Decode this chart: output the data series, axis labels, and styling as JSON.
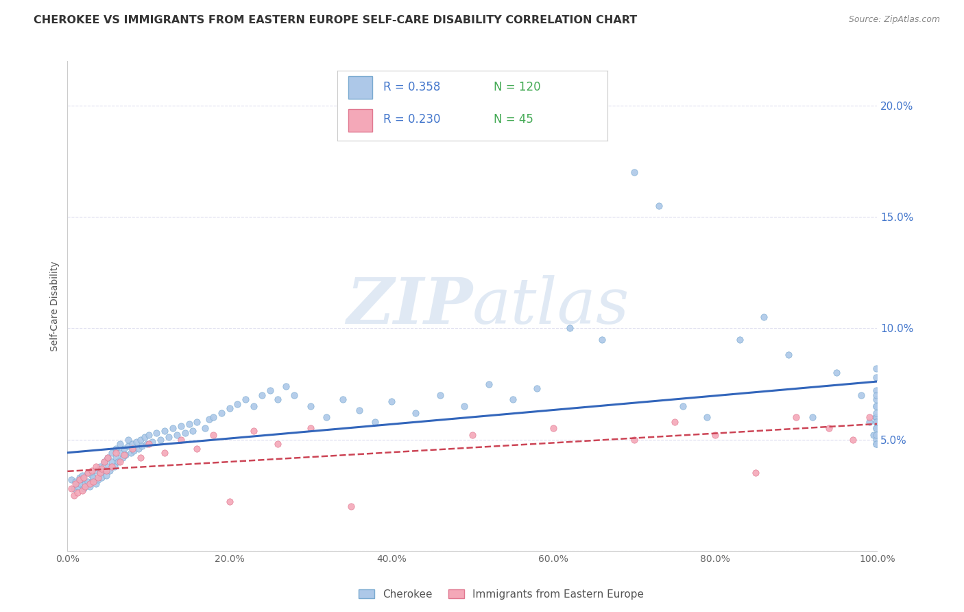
{
  "title": "CHEROKEE VS IMMIGRANTS FROM EASTERN EUROPE SELF-CARE DISABILITY CORRELATION CHART",
  "source": "Source: ZipAtlas.com",
  "ylabel": "Self-Care Disability",
  "xlim": [
    0,
    1.0
  ],
  "ylim": [
    0,
    0.22
  ],
  "xtick_vals": [
    0.0,
    0.2,
    0.4,
    0.6,
    0.8,
    1.0
  ],
  "xtick_labels": [
    "0.0%",
    "20.0%",
    "40.0%",
    "60.0%",
    "80.0%",
    "100.0%"
  ],
  "ytick_vals": [
    0.0,
    0.05,
    0.1,
    0.15,
    0.2
  ],
  "ytick_labels": [
    "",
    "5.0%",
    "10.0%",
    "15.0%",
    "20.0%"
  ],
  "cherokee_color": "#adc8e8",
  "cherokee_edge_color": "#7aaad0",
  "eastern_europe_color": "#f4a8b8",
  "eastern_europe_edge_color": "#e07890",
  "cherokee_R": 0.358,
  "cherokee_N": 120,
  "eastern_europe_R": 0.23,
  "eastern_europe_N": 45,
  "cherokee_trend_color": "#3366bb",
  "eastern_europe_trend_color": "#cc4455",
  "legend_cherokee": "Cherokee",
  "legend_eastern": "Immigrants from Eastern Europe",
  "watermark": "ZIPatlas",
  "background_color": "#ffffff",
  "grid_color": "#ddddee",
  "title_color": "#333333",
  "ytick_color": "#4477cc",
  "xtick_color": "#666666",
  "r_color": "#4477cc",
  "n_color": "#44aa55",
  "cherokee_x": [
    0.005,
    0.008,
    0.01,
    0.012,
    0.015,
    0.015,
    0.018,
    0.02,
    0.02,
    0.022,
    0.025,
    0.025,
    0.028,
    0.03,
    0.03,
    0.032,
    0.035,
    0.035,
    0.038,
    0.04,
    0.04,
    0.042,
    0.045,
    0.045,
    0.048,
    0.05,
    0.05,
    0.052,
    0.055,
    0.055,
    0.058,
    0.06,
    0.06,
    0.062,
    0.065,
    0.065,
    0.068,
    0.07,
    0.072,
    0.075,
    0.075,
    0.078,
    0.08,
    0.082,
    0.085,
    0.088,
    0.09,
    0.092,
    0.095,
    0.098,
    0.1,
    0.105,
    0.11,
    0.115,
    0.12,
    0.125,
    0.13,
    0.135,
    0.14,
    0.145,
    0.15,
    0.155,
    0.16,
    0.17,
    0.175,
    0.18,
    0.19,
    0.2,
    0.21,
    0.22,
    0.23,
    0.24,
    0.25,
    0.26,
    0.27,
    0.28,
    0.3,
    0.32,
    0.34,
    0.36,
    0.38,
    0.4,
    0.43,
    0.46,
    0.49,
    0.52,
    0.55,
    0.58,
    0.62,
    0.66,
    0.7,
    0.73,
    0.76,
    0.79,
    0.83,
    0.86,
    0.89,
    0.92,
    0.95,
    0.98,
    0.99,
    0.995,
    0.998,
    0.999,
    0.999,
    0.999,
    0.999,
    0.999,
    0.999,
    0.999,
    0.999,
    0.999,
    0.999,
    0.999,
    0.999,
    0.999,
    0.999,
    0.999,
    0.999,
    0.999
  ],
  "cherokee_y": [
    0.032,
    0.028,
    0.031,
    0.029,
    0.033,
    0.03,
    0.034,
    0.028,
    0.032,
    0.03,
    0.035,
    0.031,
    0.029,
    0.034,
    0.031,
    0.033,
    0.036,
    0.03,
    0.032,
    0.035,
    0.038,
    0.033,
    0.036,
    0.04,
    0.034,
    0.038,
    0.042,
    0.036,
    0.04,
    0.044,
    0.038,
    0.042,
    0.046,
    0.04,
    0.044,
    0.048,
    0.042,
    0.046,
    0.043,
    0.047,
    0.05,
    0.044,
    0.048,
    0.045,
    0.049,
    0.046,
    0.05,
    0.047,
    0.051,
    0.048,
    0.052,
    0.049,
    0.053,
    0.05,
    0.054,
    0.051,
    0.055,
    0.052,
    0.056,
    0.053,
    0.057,
    0.054,
    0.058,
    0.055,
    0.059,
    0.06,
    0.062,
    0.064,
    0.066,
    0.068,
    0.065,
    0.07,
    0.072,
    0.068,
    0.074,
    0.07,
    0.065,
    0.06,
    0.068,
    0.063,
    0.058,
    0.067,
    0.062,
    0.07,
    0.065,
    0.075,
    0.068,
    0.073,
    0.1,
    0.095,
    0.17,
    0.155,
    0.065,
    0.06,
    0.095,
    0.105,
    0.088,
    0.06,
    0.08,
    0.07,
    0.058,
    0.052,
    0.06,
    0.055,
    0.048,
    0.065,
    0.05,
    0.06,
    0.058,
    0.048,
    0.052,
    0.068,
    0.072,
    0.055,
    0.078,
    0.062,
    0.082,
    0.058,
    0.065,
    0.07
  ],
  "eastern_x": [
    0.005,
    0.008,
    0.01,
    0.012,
    0.015,
    0.018,
    0.02,
    0.022,
    0.025,
    0.028,
    0.03,
    0.032,
    0.035,
    0.038,
    0.04,
    0.042,
    0.045,
    0.048,
    0.05,
    0.055,
    0.06,
    0.065,
    0.07,
    0.08,
    0.09,
    0.1,
    0.12,
    0.14,
    0.16,
    0.18,
    0.2,
    0.23,
    0.26,
    0.3,
    0.35,
    0.5,
    0.6,
    0.7,
    0.75,
    0.8,
    0.85,
    0.9,
    0.94,
    0.97,
    0.99
  ],
  "eastern_y": [
    0.028,
    0.025,
    0.03,
    0.026,
    0.032,
    0.027,
    0.033,
    0.029,
    0.035,
    0.03,
    0.036,
    0.031,
    0.038,
    0.033,
    0.035,
    0.037,
    0.04,
    0.036,
    0.042,
    0.038,
    0.044,
    0.04,
    0.043,
    0.046,
    0.042,
    0.048,
    0.044,
    0.05,
    0.046,
    0.052,
    0.022,
    0.054,
    0.048,
    0.055,
    0.02,
    0.052,
    0.055,
    0.05,
    0.058,
    0.052,
    0.035,
    0.06,
    0.055,
    0.05,
    0.06
  ]
}
